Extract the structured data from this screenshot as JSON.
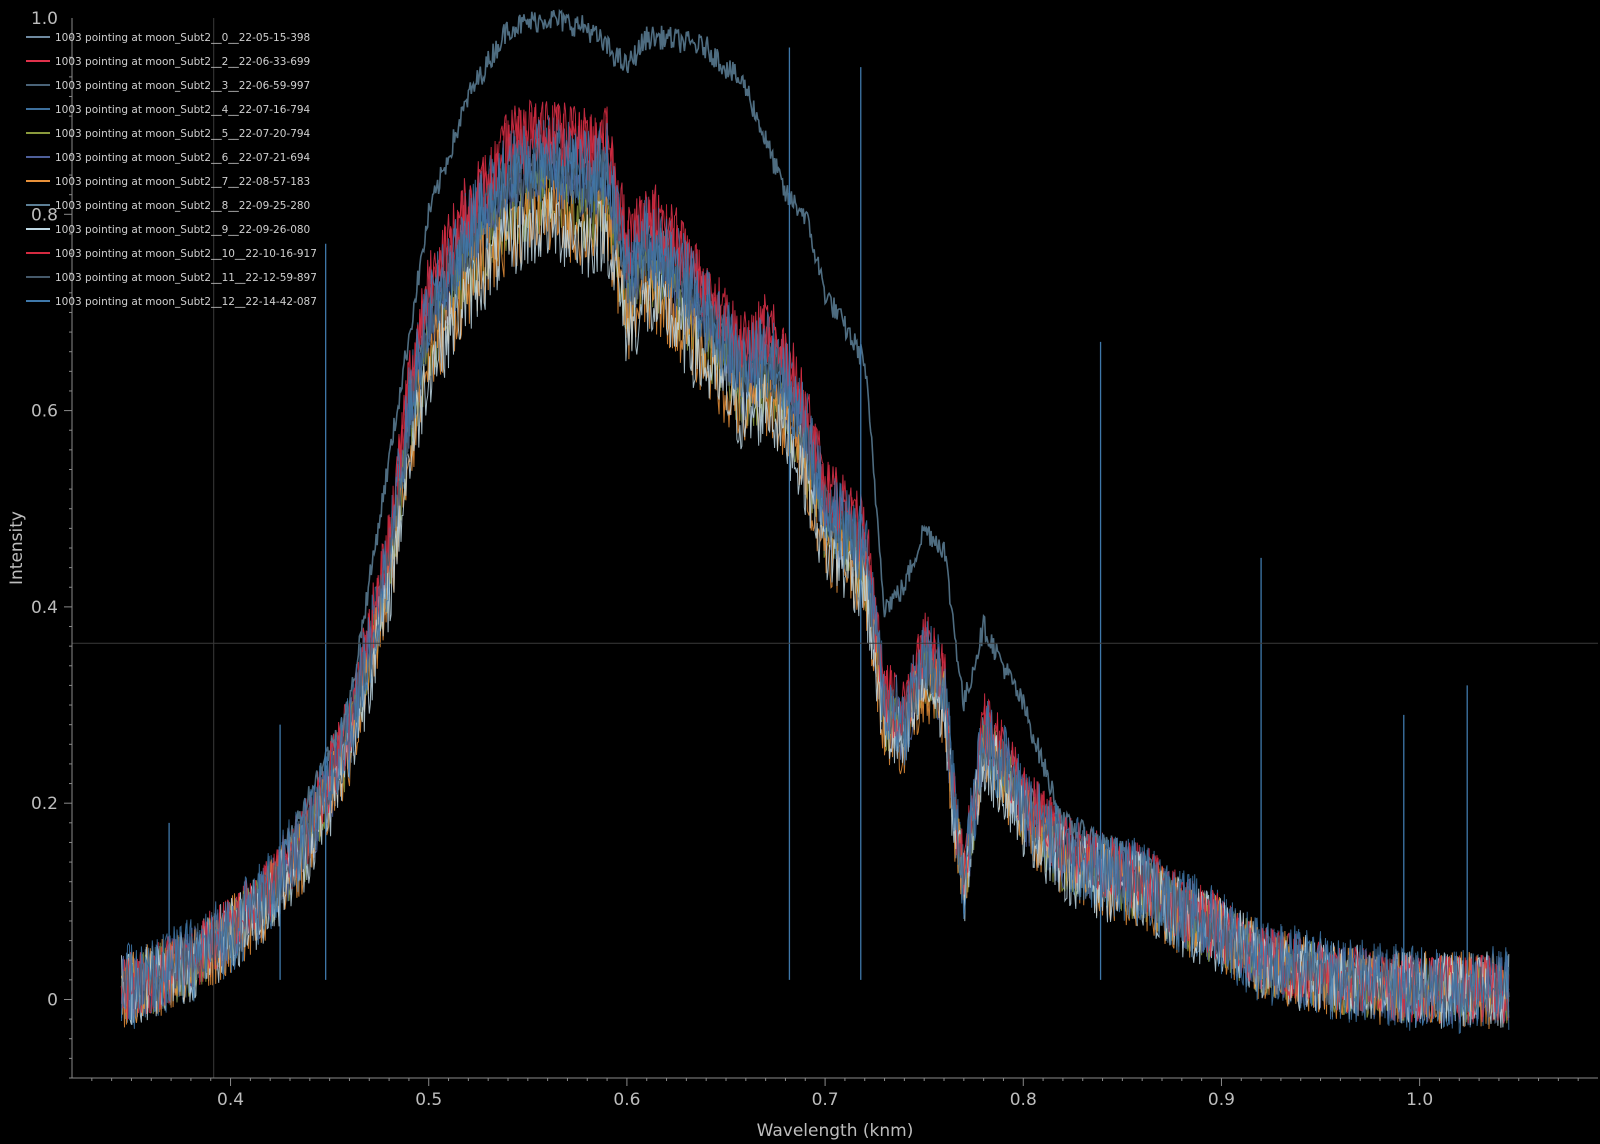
{
  "chart_data": {
    "type": "line",
    "xlabel": "Wavelength (knm)",
    "ylabel": "Intensity",
    "xlim": [
      0.32,
      1.09
    ],
    "ylim": [
      -0.08,
      1.0
    ],
    "xticks": [
      "0.4",
      "0.5",
      "0.6",
      "0.7",
      "0.8",
      "0.9",
      "1.0"
    ],
    "yticks": [
      "0",
      "0.2",
      "0.4",
      "0.6",
      "0.8",
      "1.0"
    ],
    "legend_position": "top-left",
    "crosshair": {
      "x": 0.3915,
      "y": 0.363
    },
    "spikes": [
      {
        "x": 0.369,
        "y": 0.18
      },
      {
        "x": 0.448,
        "y": 0.77
      },
      {
        "x": 0.425,
        "y": 0.28
      },
      {
        "x": 0.682,
        "y": 0.97
      },
      {
        "x": 0.718,
        "y": 0.95
      },
      {
        "x": 0.839,
        "y": 0.67
      },
      {
        "x": 0.92,
        "y": 0.45
      },
      {
        "x": 0.992,
        "y": 0.29
      },
      {
        "x": 1.024,
        "y": 0.32
      }
    ],
    "profile": [
      [
        0.345,
        0.01
      ],
      [
        0.36,
        0.02
      ],
      [
        0.38,
        0.04
      ],
      [
        0.4,
        0.07
      ],
      [
        0.42,
        0.11
      ],
      [
        0.44,
        0.17
      ],
      [
        0.46,
        0.27
      ],
      [
        0.48,
        0.45
      ],
      [
        0.49,
        0.6
      ],
      [
        0.5,
        0.7
      ],
      [
        0.52,
        0.78
      ],
      [
        0.54,
        0.84
      ],
      [
        0.56,
        0.86
      ],
      [
        0.58,
        0.84
      ],
      [
        0.59,
        0.85
      ],
      [
        0.6,
        0.74
      ],
      [
        0.61,
        0.77
      ],
      [
        0.62,
        0.76
      ],
      [
        0.64,
        0.7
      ],
      [
        0.66,
        0.64
      ],
      [
        0.67,
        0.66
      ],
      [
        0.68,
        0.63
      ],
      [
        0.69,
        0.58
      ],
      [
        0.7,
        0.5
      ],
      [
        0.72,
        0.46
      ],
      [
        0.73,
        0.3
      ],
      [
        0.74,
        0.28
      ],
      [
        0.75,
        0.35
      ],
      [
        0.76,
        0.32
      ],
      [
        0.765,
        0.2
      ],
      [
        0.77,
        0.12
      ],
      [
        0.78,
        0.27
      ],
      [
        0.79,
        0.24
      ],
      [
        0.8,
        0.2
      ],
      [
        0.82,
        0.15
      ],
      [
        0.84,
        0.13
      ],
      [
        0.86,
        0.12
      ],
      [
        0.88,
        0.09
      ],
      [
        0.9,
        0.07
      ],
      [
        0.92,
        0.04
      ],
      [
        0.94,
        0.03
      ],
      [
        0.96,
        0.02
      ],
      [
        1.0,
        0.01
      ],
      [
        1.045,
        0.01
      ]
    ],
    "series": [
      {
        "name": "1003 pointing at moon_Subt2__0__22-05-15-398",
        "color": "#6f8aa0",
        "scale": 1.0,
        "noise": 0.03
      },
      {
        "name": "1003 pointing at moon_Subt2__2__22-06-33-699",
        "color": "#e0314b",
        "scale": 1.04,
        "noise": 0.035
      },
      {
        "name": "1003 pointing at moon_Subt2__3__22-06-59-997",
        "color": "#4a6378",
        "scale": 0.98,
        "noise": 0.035
      },
      {
        "name": "1003 pointing at moon_Subt2__4__22-07-16-794",
        "color": "#3d6f9c",
        "scale": 1.01,
        "noise": 0.04
      },
      {
        "name": "1003 pointing at moon_Subt2__5__22-07-20-794",
        "color": "#8a9a3c",
        "scale": 0.95,
        "noise": 0.035
      },
      {
        "name": "1003 pointing at moon_Subt2__6__22-07-21-694",
        "color": "#4e5f9a",
        "scale": 0.97,
        "noise": 0.035
      },
      {
        "name": "1003 pointing at moon_Subt2__7__22-08-57-183",
        "color": "#e8913a",
        "scale": 0.93,
        "noise": 0.04
      },
      {
        "name": "1003 pointing at moon_Subt2__8__22-09-25-280",
        "color": "#5c7f96",
        "scale": 1.0,
        "noise": 0.035,
        "alt": true
      },
      {
        "name": "1003 pointing at moon_Subt2__9__22-09-26-080",
        "color": "#bfd8e4",
        "scale": 0.92,
        "noise": 0.04
      },
      {
        "name": "1003 pointing at moon_Subt2__10__22-10-16-917",
        "color": "#d42a40",
        "scale": 1.03,
        "noise": 0.035
      },
      {
        "name": "1003 pointing at moon_Subt2__11__22-12-59-897",
        "color": "#45596a",
        "scale": 0.99,
        "noise": 0.03
      },
      {
        "name": "1003 pointing at moon_Subt2__12__22-14-42-087",
        "color": "#3f78aa",
        "scale": 1.0,
        "noise": 0.045
      }
    ],
    "alt_profile": [
      [
        0.345,
        0.01
      ],
      [
        0.38,
        0.04
      ],
      [
        0.42,
        0.12
      ],
      [
        0.46,
        0.3
      ],
      [
        0.48,
        0.55
      ],
      [
        0.5,
        0.8
      ],
      [
        0.52,
        0.92
      ],
      [
        0.54,
        0.99
      ],
      [
        0.56,
        1.0
      ],
      [
        0.58,
        0.99
      ],
      [
        0.59,
        0.97
      ],
      [
        0.6,
        0.95
      ],
      [
        0.61,
        0.98
      ],
      [
        0.62,
        0.98
      ],
      [
        0.64,
        0.97
      ],
      [
        0.66,
        0.93
      ],
      [
        0.68,
        0.82
      ],
      [
        0.69,
        0.8
      ],
      [
        0.7,
        0.72
      ],
      [
        0.72,
        0.65
      ],
      [
        0.73,
        0.4
      ],
      [
        0.74,
        0.42
      ],
      [
        0.75,
        0.48
      ],
      [
        0.76,
        0.46
      ],
      [
        0.77,
        0.3
      ],
      [
        0.78,
        0.38
      ],
      [
        0.8,
        0.3
      ],
      [
        0.82,
        0.18
      ],
      [
        0.84,
        0.16
      ],
      [
        0.86,
        0.14
      ],
      [
        0.88,
        0.1
      ],
      [
        0.9,
        0.07
      ],
      [
        0.94,
        0.04
      ],
      [
        1.0,
        0.02
      ],
      [
        1.045,
        0.01
      ]
    ]
  }
}
